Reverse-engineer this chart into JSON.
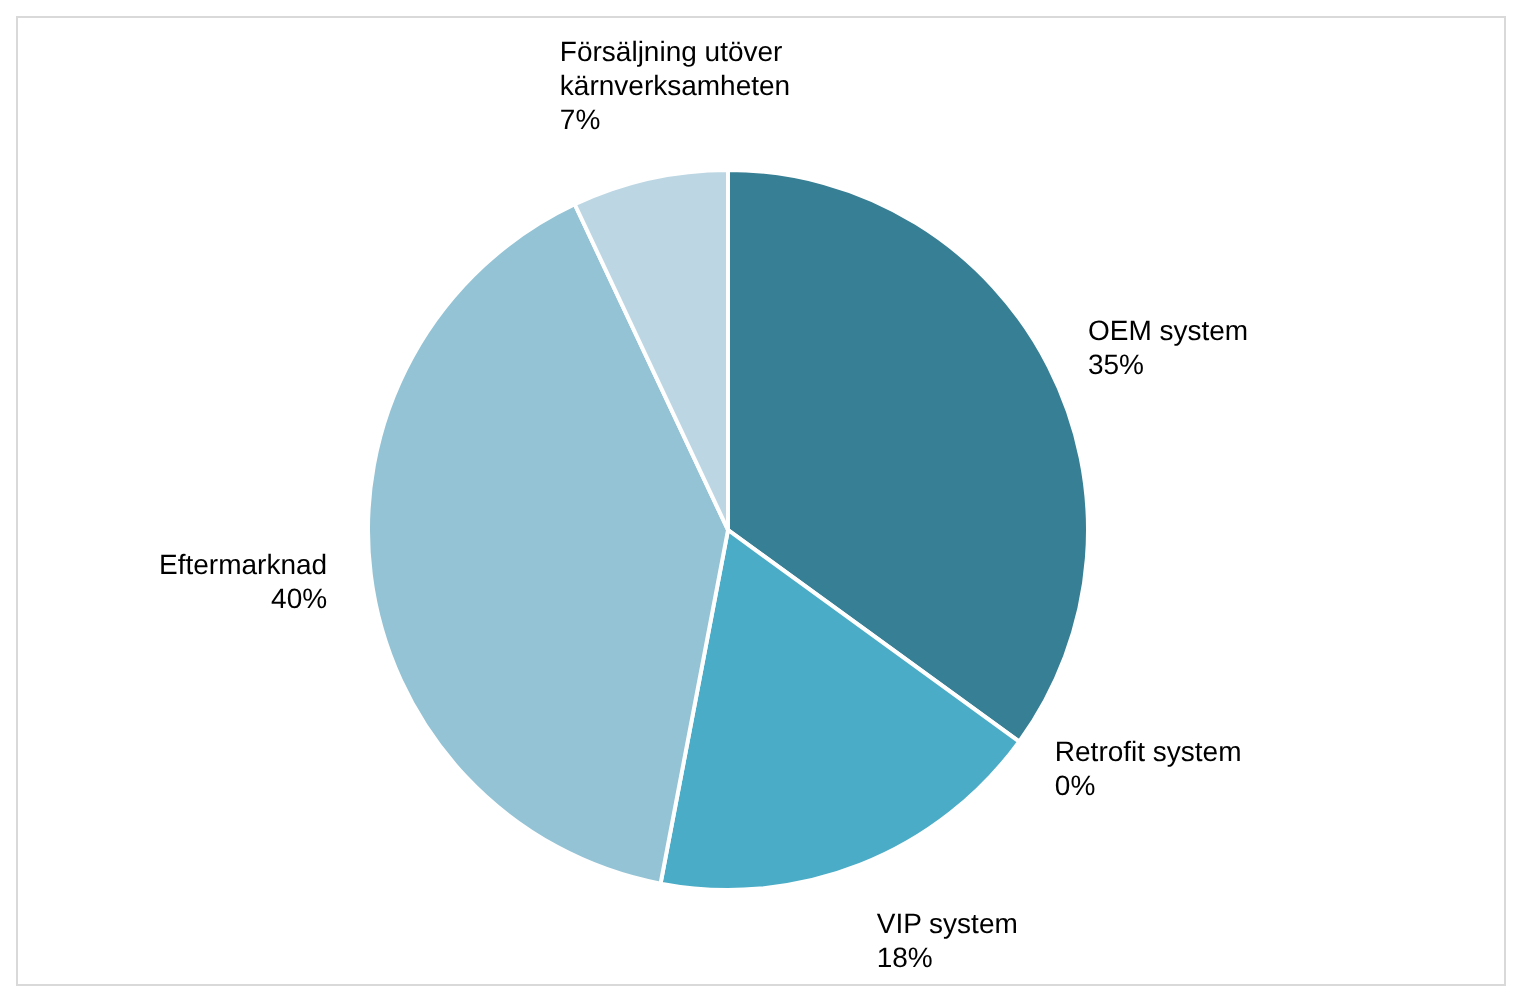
{
  "chart_data": {
    "type": "pie",
    "categories": [
      "OEM system",
      "Retrofit system",
      "VIP system",
      "Eftermarknad",
      "Försäljning utöver kärnverksamheten"
    ],
    "values": [
      35,
      0,
      18,
      40,
      7
    ],
    "colors": [
      "#367f94",
      null,
      "#4aacc6",
      "#93c3d5",
      "#bcd7e3"
    ],
    "value_labels": [
      "35%",
      "0%",
      "18%",
      "40%",
      "7%"
    ]
  }
}
